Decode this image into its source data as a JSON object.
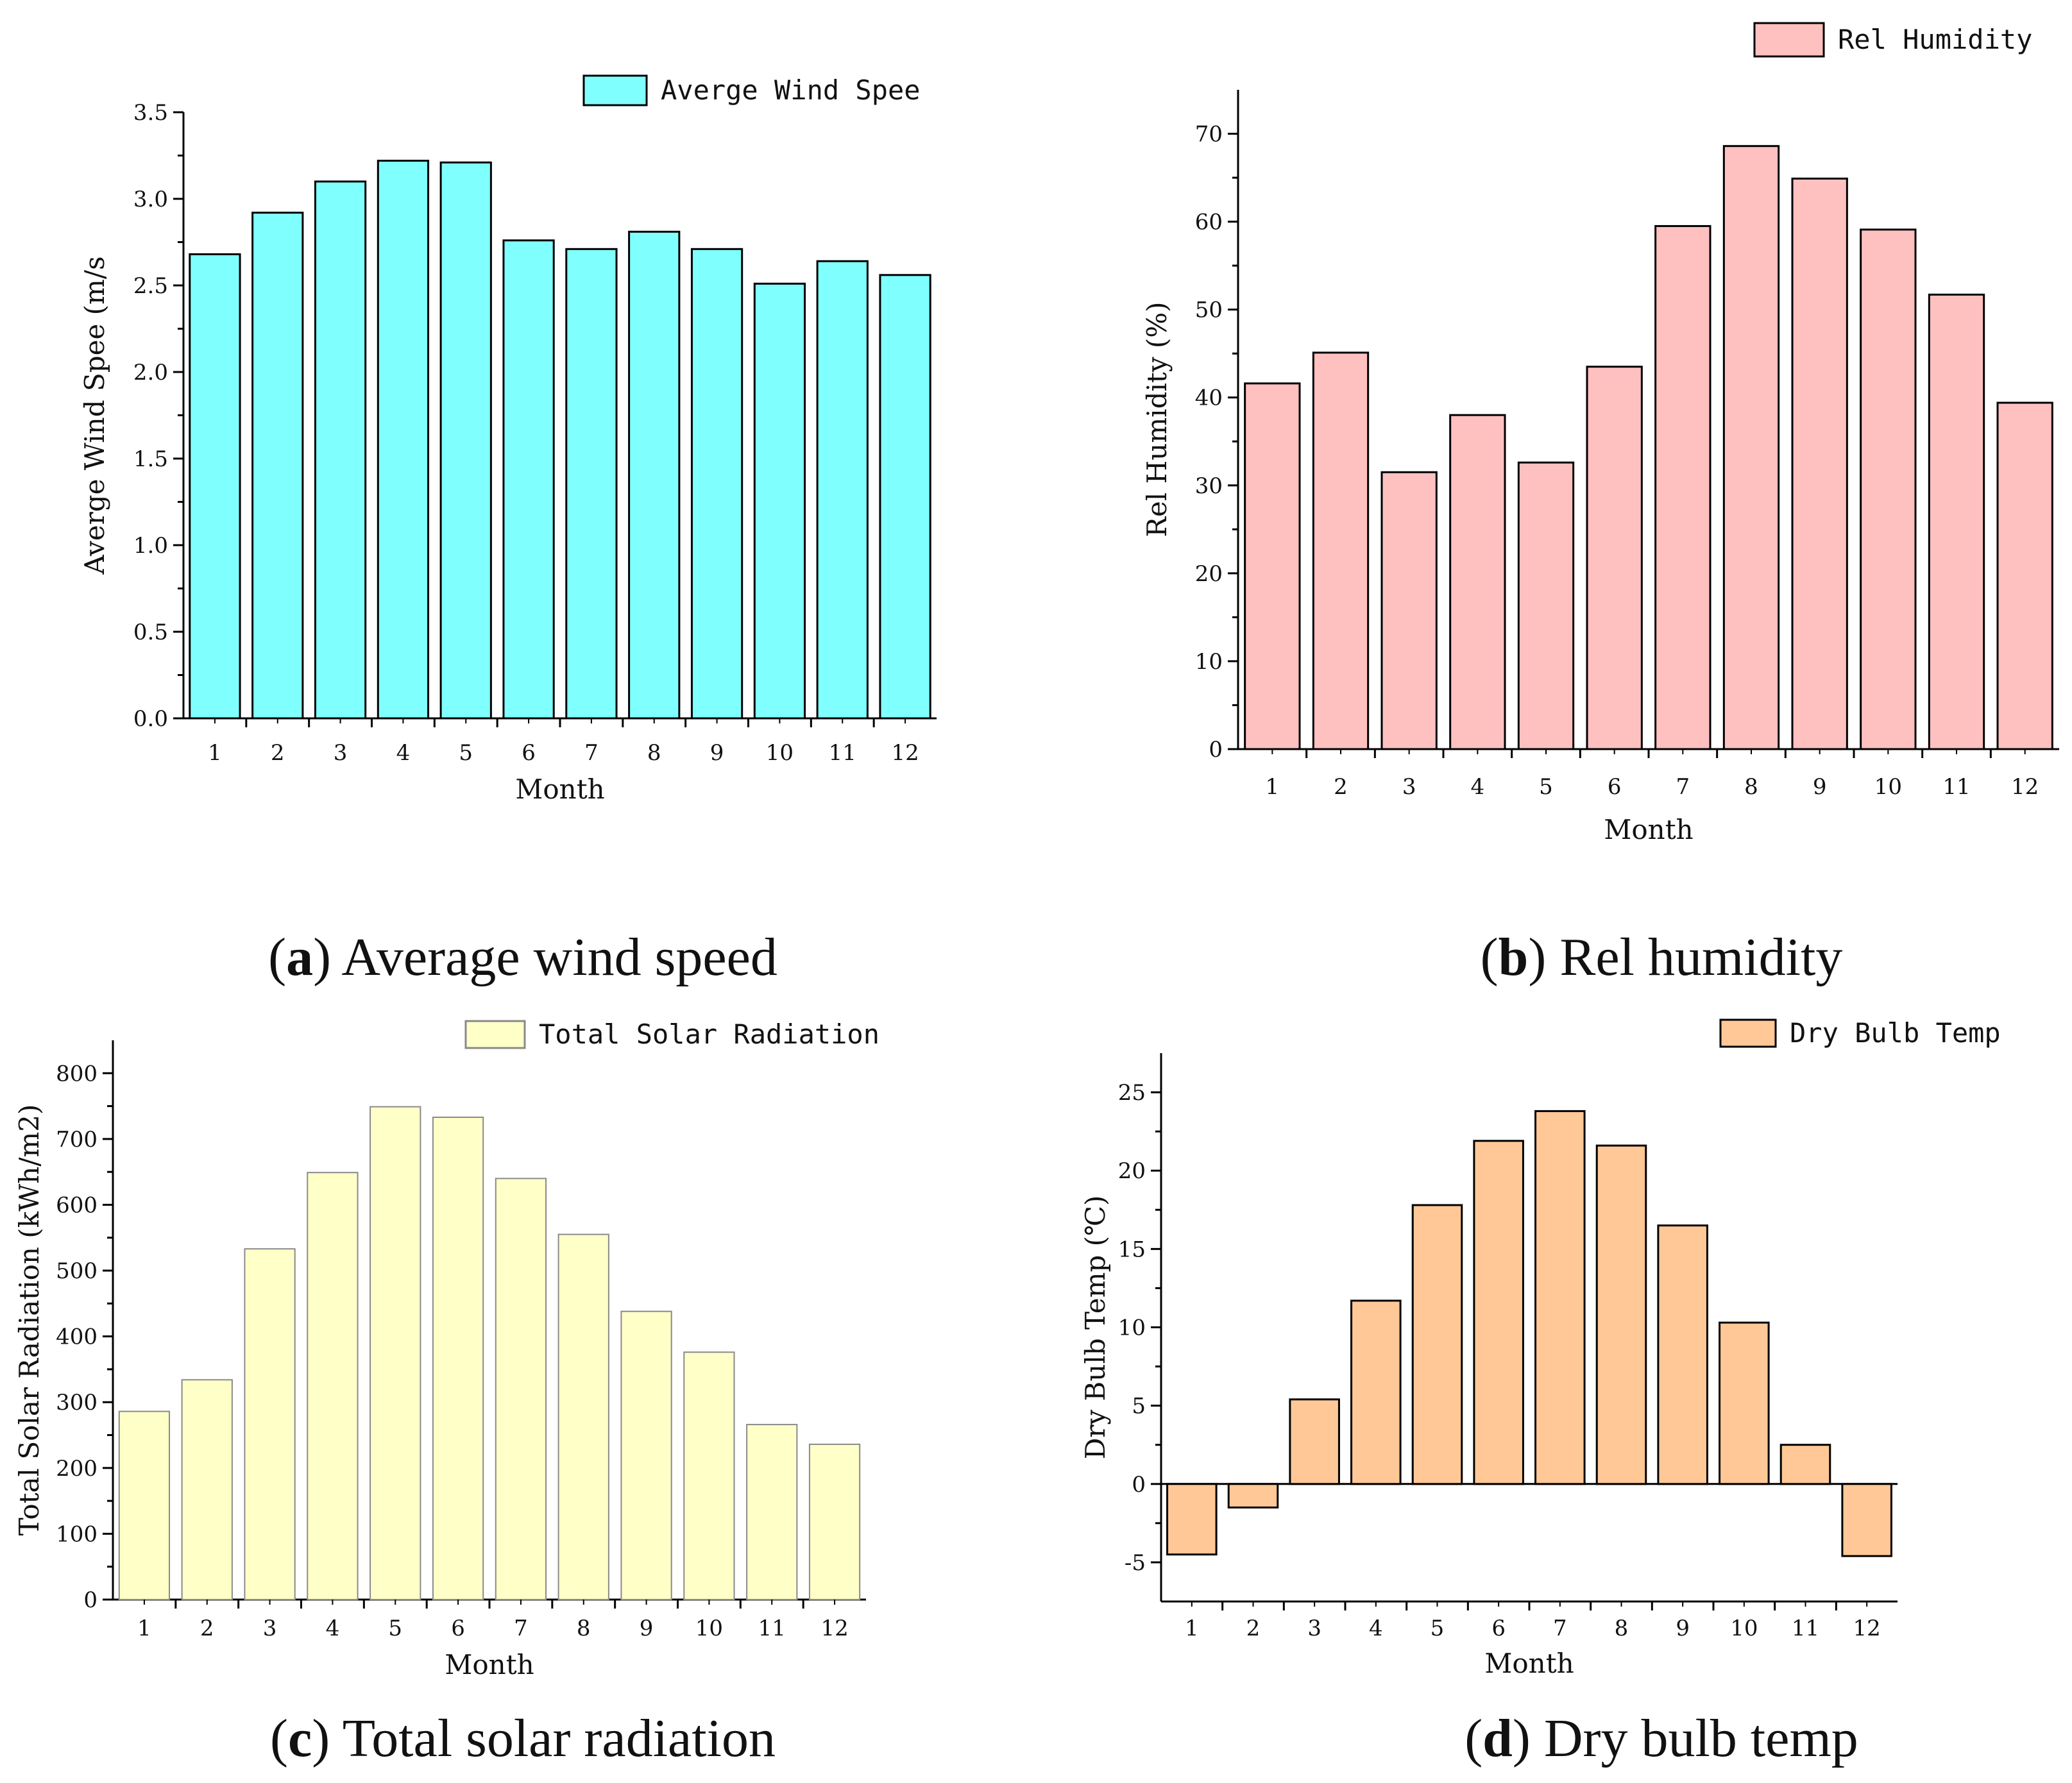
{
  "chart_data": [
    {
      "id": "a",
      "type": "bar",
      "categories": [
        "1",
        "2",
        "3",
        "4",
        "5",
        "6",
        "7",
        "8",
        "9",
        "10",
        "11",
        "12"
      ],
      "series": [
        {
          "name": "Averge Wind Spee",
          "values": [
            2.68,
            2.92,
            3.1,
            3.22,
            3.21,
            2.76,
            2.71,
            2.81,
            2.71,
            2.51,
            2.64,
            2.56
          ]
        }
      ],
      "xlabel": "Month",
      "ylabel": "Averge Wind Spee (m/s",
      "ylim": [
        0,
        3.5
      ],
      "yticks": [
        "0.0",
        "0.5",
        "1.0",
        "1.5",
        "2.0",
        "2.5",
        "3.0",
        "3.5"
      ],
      "legend": "top-right",
      "color": "#80FFFF",
      "caption": {
        "letter": "a",
        "text": " Average wind speed"
      }
    },
    {
      "id": "b",
      "type": "bar",
      "categories": [
        "1",
        "2",
        "3",
        "4",
        "5",
        "6",
        "7",
        "8",
        "9",
        "10",
        "11",
        "12"
      ],
      "series": [
        {
          "name": "Rel Humidity",
          "values": [
            41.6,
            45.1,
            31.5,
            38.0,
            32.6,
            43.5,
            59.5,
            68.6,
            64.9,
            59.1,
            51.7,
            39.4
          ]
        }
      ],
      "xlabel": "Month",
      "ylabel": "Rel Humidity (%)",
      "ylim": [
        0,
        75
      ],
      "yticks": [
        "0",
        "10",
        "20",
        "30",
        "40",
        "50",
        "60",
        "70"
      ],
      "legend": "top-right",
      "color": "#FFC0C0",
      "caption": {
        "letter": "b",
        "text": " Rel humidity"
      }
    },
    {
      "id": "c",
      "type": "bar",
      "categories": [
        "1",
        "2",
        "3",
        "4",
        "5",
        "6",
        "7",
        "8",
        "9",
        "10",
        "11",
        "12"
      ],
      "series": [
        {
          "name": "Total Solar Radiation",
          "values": [
            286,
            334,
            533,
            649,
            749,
            733,
            640,
            555,
            438,
            376,
            266,
            236
          ]
        }
      ],
      "xlabel": "Month",
      "ylabel": "Total Solar Radiation (kWh/m2)",
      "ylim": [
        0,
        850
      ],
      "yticks": [
        "0",
        "100",
        "200",
        "300",
        "400",
        "500",
        "600",
        "700",
        "800"
      ],
      "legend": "top-right",
      "color": "#FFFFC8",
      "caption": {
        "letter": "c",
        "text": " Total solar radiation"
      }
    },
    {
      "id": "d",
      "type": "bar",
      "categories": [
        "1",
        "2",
        "3",
        "4",
        "5",
        "6",
        "7",
        "8",
        "9",
        "10",
        "11",
        "12"
      ],
      "series": [
        {
          "name": "Dry Bulb Temp",
          "values": [
            -4.5,
            -1.5,
            5.4,
            11.7,
            17.8,
            21.9,
            23.8,
            21.6,
            16.5,
            10.3,
            2.5,
            -4.6
          ]
        }
      ],
      "xlabel": "Month",
      "ylabel": "Dry Bulb Temp (℃)",
      "ylim": [
        -7.5,
        27.5
      ],
      "yticks": [
        "-5",
        "0",
        "5",
        "10",
        "15",
        "20",
        "25"
      ],
      "legend": "top-right",
      "color": "#FFC896",
      "caption": {
        "letter": "d",
        "text": " Dry bulb temp"
      }
    }
  ]
}
